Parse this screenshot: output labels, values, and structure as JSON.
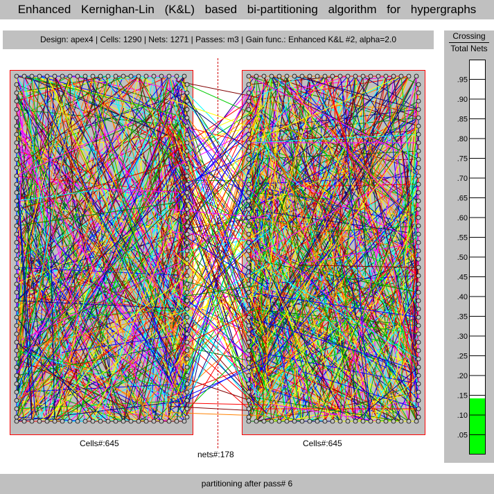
{
  "window": {
    "title": "Enhanced Kernighan-Lin (K&L) based bi-partitioning algorithm for hypergraphs"
  },
  "info_bar": {
    "text": "Design: apex4  |  Cells: 1290  |  Nets: 1271  |  Passes: m3  |  Gain func.: Enhanced K&L #2, alpha=2.0"
  },
  "gauge": {
    "title_line1": "Crossing",
    "title_line2": "Total Nets",
    "ticks": [
      ".95",
      ".90",
      ".85",
      ".80",
      ".75",
      ".70",
      ".65",
      ".60",
      ".55",
      ".50",
      ".45",
      ".40",
      ".35",
      ".30",
      ".25",
      ".20",
      ".15",
      ".10",
      ".05"
    ],
    "fill_fraction": 0.14,
    "fill_color": "#00ff00"
  },
  "partitions": {
    "left_label": "Cells#:645",
    "right_label": "Cells#:645",
    "nets_label": "nets#:178"
  },
  "colors": {
    "panel_gray": "#c0c0c0",
    "border_red": "#ff0000",
    "net_colors": [
      "#ff0000",
      "#00cc00",
      "#0000ff",
      "#ffff00",
      "#ff00ff",
      "#00ffff",
      "#008000",
      "#000080",
      "#800000",
      "#ff8000"
    ]
  },
  "status": {
    "text": "partitioning after pass# 6"
  }
}
